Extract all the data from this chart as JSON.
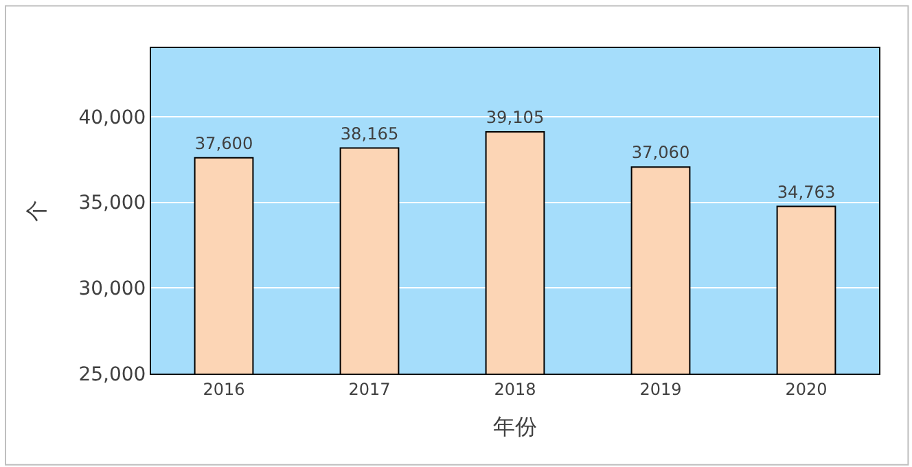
{
  "chart_data": {
    "type": "bar",
    "xlabel": "年份",
    "ylabel": "个",
    "categories": [
      "2016",
      "2017",
      "2018",
      "2019",
      "2020"
    ],
    "values": [
      37600,
      38165,
      39105,
      37060,
      34763
    ],
    "color": "#fcd5b5",
    "ylim": [
      25000,
      44000
    ],
    "yticks": [
      {
        "value": 25000,
        "label": "25,000"
      },
      {
        "value": 30000,
        "label": "30,000"
      },
      {
        "value": 35000,
        "label": "35,000"
      },
      {
        "value": 40000,
        "label": "40,000"
      }
    ],
    "value_labels": [
      "37,600",
      "38,165",
      "39,105",
      "37,060",
      "34,763"
    ],
    "grid": "y"
  }
}
